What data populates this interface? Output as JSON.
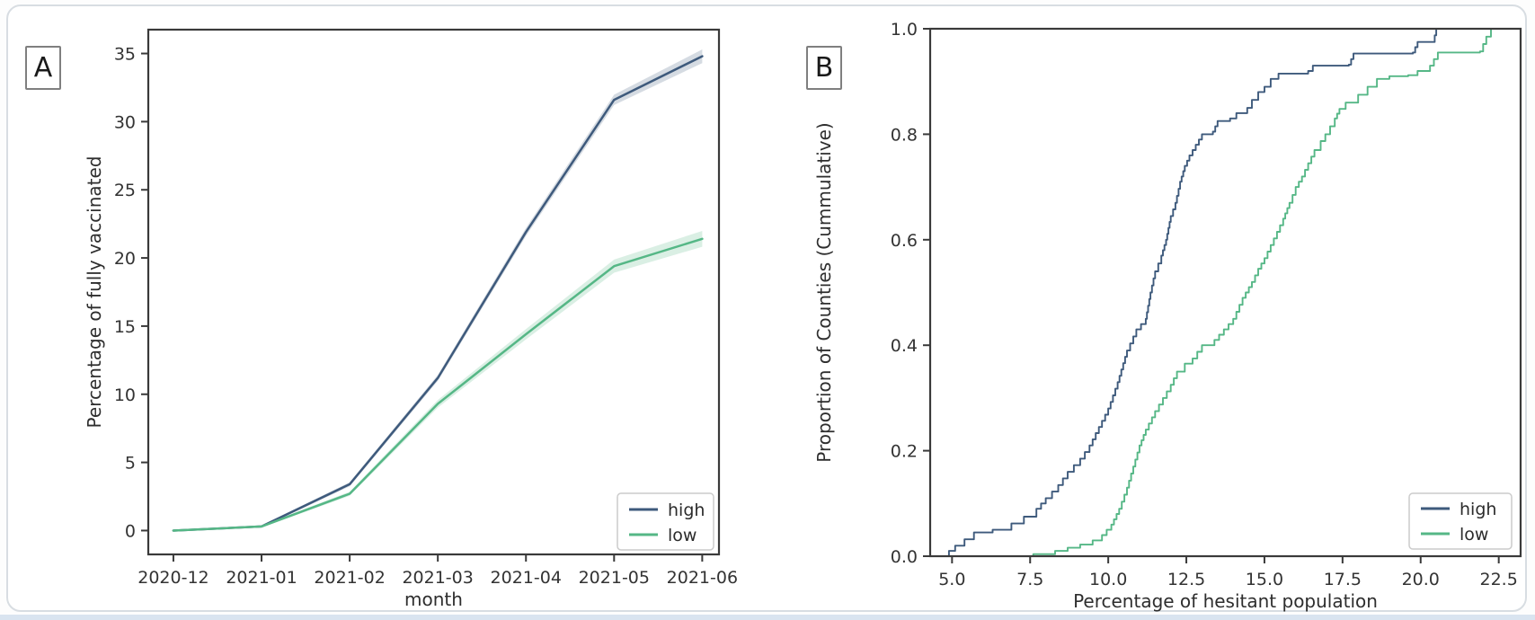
{
  "figure": {
    "panel_a_label": "A",
    "panel_b_label": "B",
    "accent_colors": {
      "high": "#3e5a7c",
      "low": "#55b786"
    },
    "axis_color": "#3a3a3a",
    "card_border_color": "#d8dde2",
    "bottom_bar_color": "#d9e4f0"
  },
  "chart_data": [
    {
      "id": "panel_a",
      "type": "line",
      "panel_label": "A",
      "title": "",
      "xlabel": "month",
      "ylabel": "Percentage of fully vaccinated",
      "x_categories": [
        "2020-12",
        "2021-01",
        "2021-02",
        "2021-03",
        "2021-04",
        "2021-05",
        "2021-06"
      ],
      "series": [
        {
          "name": "high",
          "color": "#3e5a7c",
          "values": [
            0.0,
            0.3,
            3.4,
            11.2,
            21.9,
            31.6,
            34.8
          ],
          "band": [
            0.05,
            0.08,
            0.15,
            0.22,
            0.3,
            0.38,
            0.5
          ]
        },
        {
          "name": "low",
          "color": "#55b786",
          "values": [
            0.0,
            0.3,
            2.7,
            9.3,
            14.4,
            19.4,
            21.4
          ],
          "band": [
            0.05,
            0.08,
            0.15,
            0.28,
            0.38,
            0.48,
            0.58
          ]
        }
      ],
      "yticks": [
        0,
        5,
        10,
        15,
        20,
        25,
        30,
        35
      ],
      "ytick_labels": [
        "0",
        "5",
        "10",
        "15",
        "20",
        "25",
        "30",
        "35"
      ],
      "ylim": [
        -1.75,
        36.75
      ],
      "xlim": [
        -0.285,
        6.19
      ],
      "legend_entries": [
        "high",
        "low"
      ],
      "legend_position": "lower right",
      "grid": false
    },
    {
      "id": "panel_b",
      "type": "ecdf",
      "panel_label": "B",
      "title": "",
      "xlabel": "Percentage of hesitant population",
      "ylabel": "Proportion of Counties (Cummulative)",
      "xticks": [
        5.0,
        7.5,
        10.0,
        12.5,
        15.0,
        17.5,
        20.0,
        22.5
      ],
      "xtick_labels": [
        "5.0",
        "7.5",
        "10.0",
        "12.5",
        "15.0",
        "17.5",
        "20.0",
        "22.5"
      ],
      "yticks": [
        0.0,
        0.2,
        0.4,
        0.6,
        0.8,
        1.0
      ],
      "ytick_labels": [
        "0.0",
        "0.2",
        "0.4",
        "0.6",
        "0.8",
        "1.0"
      ],
      "xlim": [
        4.3,
        23.2
      ],
      "ylim": [
        0,
        1
      ],
      "series": [
        {
          "name": "high",
          "color": "#3e5a7c",
          "points": [
            [
              4.4,
              0.0
            ],
            [
              4.9,
              0.01
            ],
            [
              5.1,
              0.02
            ],
            [
              5.4,
              0.032
            ],
            [
              5.7,
              0.045
            ],
            [
              6.3,
              0.05
            ],
            [
              6.9,
              0.062
            ],
            [
              7.3,
              0.075
            ],
            [
              7.7,
              0.09
            ],
            [
              8.0,
              0.11
            ],
            [
              8.4,
              0.135
            ],
            [
              8.7,
              0.16
            ],
            [
              9.1,
              0.185
            ],
            [
              9.4,
              0.21
            ],
            [
              9.7,
              0.245
            ],
            [
              10.0,
              0.28
            ],
            [
              10.3,
              0.33
            ],
            [
              10.6,
              0.39
            ],
            [
              10.9,
              0.43
            ],
            [
              11.2,
              0.45
            ],
            [
              11.35,
              0.5
            ],
            [
              11.5,
              0.54
            ],
            [
              11.7,
              0.57
            ],
            [
              11.85,
              0.6
            ],
            [
              12.0,
              0.645
            ],
            [
              12.15,
              0.67
            ],
            [
              12.3,
              0.71
            ],
            [
              12.45,
              0.74
            ],
            [
              12.6,
              0.76
            ],
            [
              12.8,
              0.78
            ],
            [
              13.0,
              0.8
            ],
            [
              13.35,
              0.805
            ],
            [
              13.5,
              0.825
            ],
            [
              13.9,
              0.83
            ],
            [
              14.1,
              0.84
            ],
            [
              14.45,
              0.85
            ],
            [
              14.6,
              0.865
            ],
            [
              14.8,
              0.88
            ],
            [
              15.0,
              0.89
            ],
            [
              15.2,
              0.905
            ],
            [
              15.45,
              0.915
            ],
            [
              16.4,
              0.92
            ],
            [
              16.55,
              0.93
            ],
            [
              17.7,
              0.932
            ],
            [
              17.85,
              0.953
            ],
            [
              19.75,
              0.955
            ],
            [
              19.9,
              0.975
            ],
            [
              20.4,
              0.975
            ],
            [
              20.5,
              1.0
            ],
            [
              21.3,
              1.0
            ]
          ]
        },
        {
          "name": "low",
          "color": "#55b786",
          "points": [
            [
              6.9,
              0.0
            ],
            [
              7.6,
              0.004
            ],
            [
              8.3,
              0.01
            ],
            [
              8.7,
              0.016
            ],
            [
              9.1,
              0.022
            ],
            [
              9.5,
              0.03
            ],
            [
              9.8,
              0.04
            ],
            [
              10.1,
              0.06
            ],
            [
              10.35,
              0.09
            ],
            [
              10.6,
              0.13
            ],
            [
              10.8,
              0.17
            ],
            [
              11.0,
              0.21
            ],
            [
              11.2,
              0.24
            ],
            [
              11.5,
              0.275
            ],
            [
              11.75,
              0.3
            ],
            [
              12.0,
              0.325
            ],
            [
              12.2,
              0.35
            ],
            [
              12.45,
              0.365
            ],
            [
              12.7,
              0.375
            ],
            [
              13.0,
              0.4
            ],
            [
              13.4,
              0.41
            ],
            [
              13.7,
              0.43
            ],
            [
              14.0,
              0.45
            ],
            [
              14.3,
              0.49
            ],
            [
              14.6,
              0.52
            ],
            [
              14.8,
              0.545
            ],
            [
              15.0,
              0.565
            ],
            [
              15.2,
              0.59
            ],
            [
              15.4,
              0.615
            ],
            [
              15.6,
              0.64
            ],
            [
              15.8,
              0.67
            ],
            [
              16.0,
              0.7
            ],
            [
              16.2,
              0.72
            ],
            [
              16.4,
              0.745
            ],
            [
              16.6,
              0.77
            ],
            [
              16.8,
              0.787
            ],
            [
              16.95,
              0.8
            ],
            [
              17.1,
              0.815
            ],
            [
              17.25,
              0.83
            ],
            [
              17.4,
              0.848
            ],
            [
              17.6,
              0.86
            ],
            [
              18.0,
              0.875
            ],
            [
              18.3,
              0.89
            ],
            [
              18.6,
              0.905
            ],
            [
              19.0,
              0.91
            ],
            [
              19.6,
              0.912
            ],
            [
              19.9,
              0.92
            ],
            [
              20.3,
              0.93
            ],
            [
              20.55,
              0.955
            ],
            [
              21.9,
              0.957
            ],
            [
              22.1,
              0.985
            ],
            [
              22.25,
              1.0
            ],
            [
              23.1,
              1.0
            ]
          ]
        }
      ],
      "legend_entries": [
        "high",
        "low"
      ],
      "legend_position": "lower right",
      "grid": false
    }
  ]
}
